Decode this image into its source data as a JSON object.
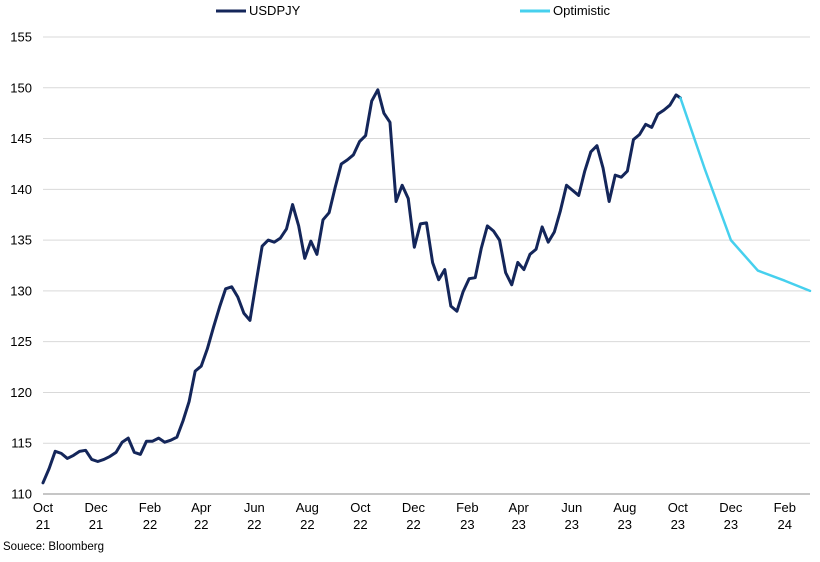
{
  "chart_data": {
    "type": "line",
    "title": "",
    "xlabel": "",
    "ylabel": "",
    "ylim": [
      110,
      155
    ],
    "yticks": [
      110,
      115,
      120,
      125,
      130,
      135,
      140,
      145,
      150,
      155
    ],
    "grid": true,
    "legend_position": "top-center",
    "x_tick_labels": [
      {
        "month": "Oct",
        "year": "21"
      },
      {
        "month": "Dec",
        "year": "21"
      },
      {
        "month": "Feb",
        "year": "22"
      },
      {
        "month": "Apr",
        "year": "22"
      },
      {
        "month": "Jun",
        "year": "22"
      },
      {
        "month": "Aug",
        "year": "22"
      },
      {
        "month": "Oct",
        "year": "22"
      },
      {
        "month": "Dec",
        "year": "22"
      },
      {
        "month": "Feb",
        "year": "23"
      },
      {
        "month": "Apr",
        "year": "23"
      },
      {
        "month": "Jun",
        "year": "23"
      },
      {
        "month": "Aug",
        "year": "23"
      },
      {
        "month": "Oct",
        "year": "23"
      },
      {
        "month": "Dec",
        "year": "23"
      },
      {
        "month": "Feb",
        "year": "24"
      }
    ],
    "series": [
      {
        "name": "USDPJY",
        "color": "#14265a",
        "x": [
          "2021-10-01",
          "2021-10-08",
          "2021-10-15",
          "2021-10-22",
          "2021-10-29",
          "2021-11-05",
          "2021-11-12",
          "2021-11-19",
          "2021-11-26",
          "2021-12-03",
          "2021-12-10",
          "2021-12-17",
          "2021-12-24",
          "2021-12-31",
          "2022-01-07",
          "2022-01-14",
          "2022-01-21",
          "2022-01-28",
          "2022-02-04",
          "2022-02-11",
          "2022-02-18",
          "2022-02-25",
          "2022-03-04",
          "2022-03-11",
          "2022-03-18",
          "2022-03-25",
          "2022-04-01",
          "2022-04-08",
          "2022-04-15",
          "2022-04-22",
          "2022-04-29",
          "2022-05-06",
          "2022-05-13",
          "2022-05-20",
          "2022-05-27",
          "2022-06-03",
          "2022-06-10",
          "2022-06-17",
          "2022-06-24",
          "2022-07-01",
          "2022-07-08",
          "2022-07-15",
          "2022-07-22",
          "2022-07-29",
          "2022-08-05",
          "2022-08-12",
          "2022-08-19",
          "2022-08-26",
          "2022-09-02",
          "2022-09-09",
          "2022-09-16",
          "2022-09-23",
          "2022-09-30",
          "2022-10-07",
          "2022-10-14",
          "2022-10-21",
          "2022-10-28",
          "2022-11-04",
          "2022-11-11",
          "2022-11-18",
          "2022-11-25",
          "2022-12-02",
          "2022-12-09",
          "2022-12-16",
          "2022-12-23",
          "2022-12-30",
          "2023-01-06",
          "2023-01-13",
          "2023-01-20",
          "2023-01-27",
          "2023-02-03",
          "2023-02-10",
          "2023-02-17",
          "2023-02-24",
          "2023-03-03",
          "2023-03-10",
          "2023-03-17",
          "2023-03-24",
          "2023-03-31",
          "2023-04-07",
          "2023-04-14",
          "2023-04-21",
          "2023-04-28",
          "2023-05-05",
          "2023-05-12",
          "2023-05-19",
          "2023-05-26",
          "2023-06-02",
          "2023-06-09",
          "2023-06-16",
          "2023-06-23",
          "2023-06-30",
          "2023-07-07",
          "2023-07-14",
          "2023-07-21",
          "2023-07-28",
          "2023-08-04",
          "2023-08-11",
          "2023-08-18",
          "2023-08-25",
          "2023-09-01",
          "2023-09-08",
          "2023-09-15",
          "2023-09-22",
          "2023-09-29",
          "2023-10-04"
        ],
        "y": [
          111.1,
          112.5,
          114.2,
          114.0,
          113.5,
          113.8,
          114.2,
          114.3,
          113.4,
          113.2,
          113.4,
          113.7,
          114.1,
          115.1,
          115.5,
          114.1,
          113.9,
          115.2,
          115.2,
          115.5,
          115.1,
          115.3,
          115.6,
          117.2,
          119.1,
          122.1,
          122.6,
          124.3,
          126.4,
          128.4,
          130.2,
          130.4,
          129.4,
          127.8,
          127.1,
          130.8,
          134.4,
          135.0,
          134.8,
          135.2,
          136.1,
          138.5,
          136.4,
          133.2,
          134.9,
          133.6,
          137.0,
          137.7,
          140.2,
          142.5,
          142.9,
          143.4,
          144.7,
          145.3,
          148.7,
          149.8,
          147.5,
          146.6,
          138.8,
          140.4,
          139.1,
          134.3,
          136.6,
          136.7,
          132.8,
          131.1,
          132.1,
          128.5,
          128.0,
          129.9,
          131.2,
          131.3,
          134.2,
          136.4,
          135.9,
          135.0,
          131.8,
          130.6,
          132.8,
          132.1,
          133.6,
          134.1,
          136.3,
          134.8,
          135.8,
          137.9,
          140.4,
          139.9,
          139.4,
          141.8,
          143.7,
          144.3,
          142.1,
          138.8,
          141.4,
          141.2,
          141.8,
          144.9,
          145.4,
          146.4,
          146.1,
          147.4,
          147.8,
          148.3,
          149.3,
          149.0
        ]
      },
      {
        "name": "Optimistic",
        "color": "#46d0ee",
        "x": [
          "2023-10-04",
          "2023-11-01",
          "2023-12-01",
          "2024-01-01",
          "2024-02-01",
          "2024-03-01"
        ],
        "y": [
          149.0,
          142.0,
          135.0,
          132.0,
          131.0,
          130.0
        ]
      }
    ],
    "source": "Souece: Bloomberg"
  }
}
